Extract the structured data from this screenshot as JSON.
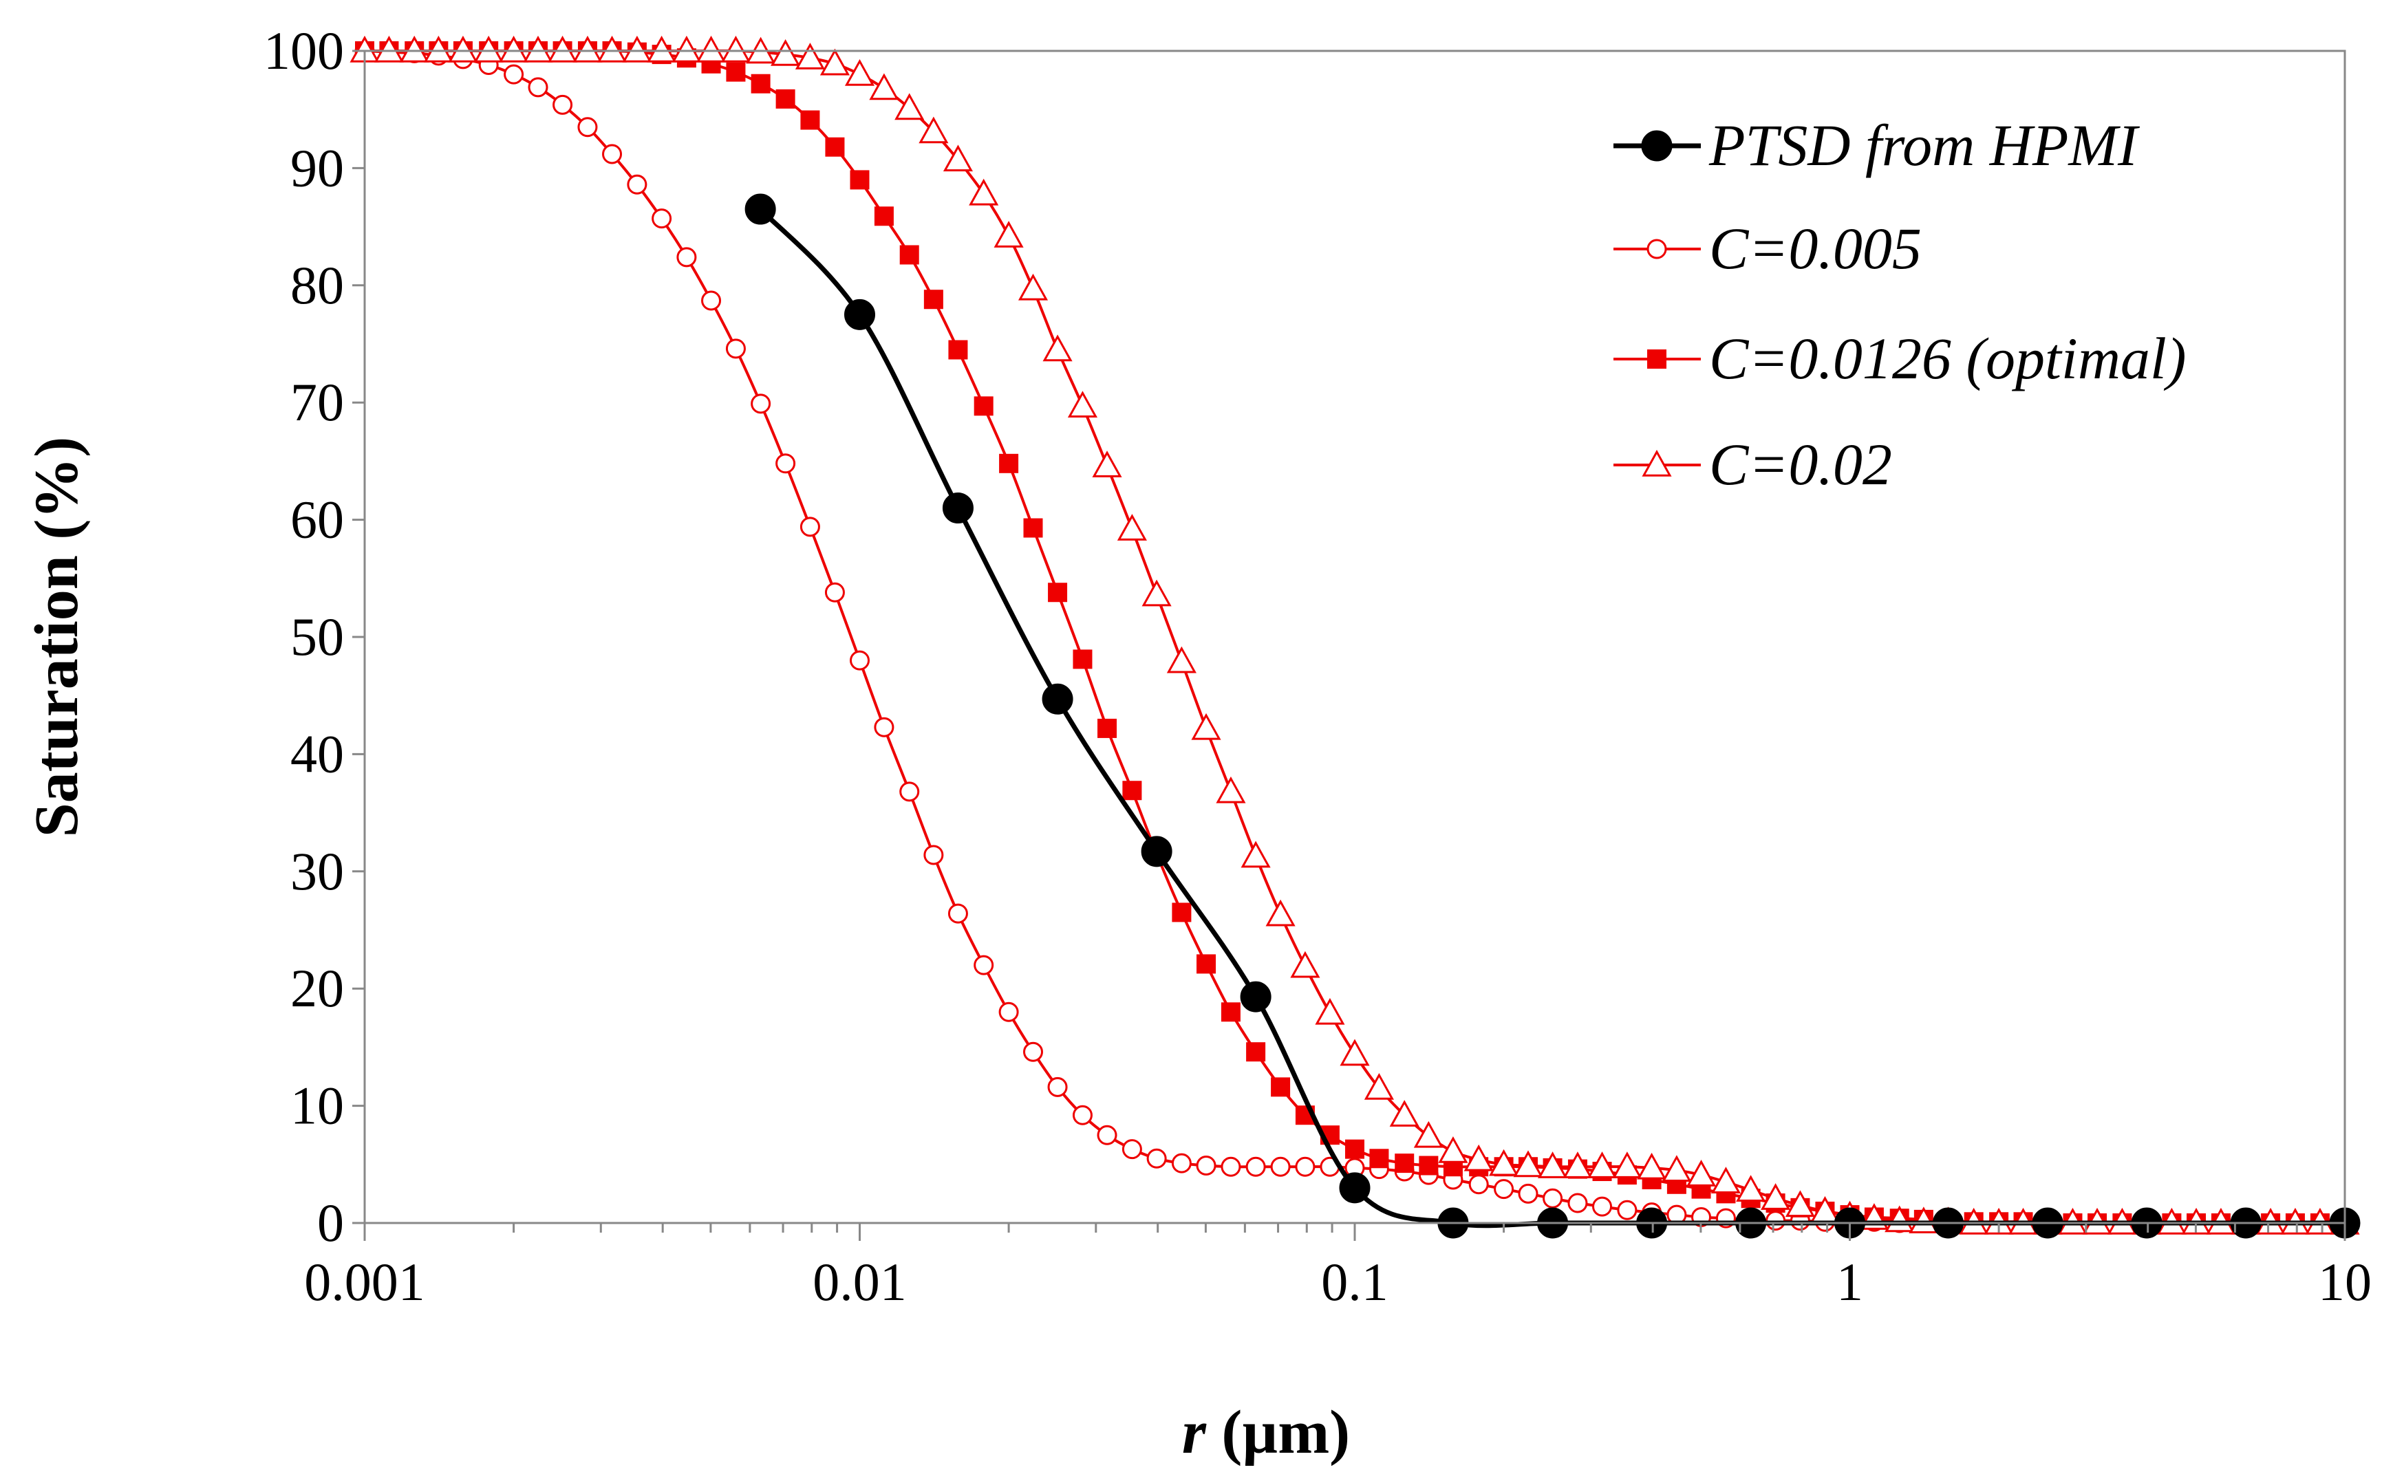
{
  "chart_data": {
    "type": "line",
    "title": "",
    "xlabel_italic": "r",
    "xlabel_rest": " (µm)",
    "ylabel": "Saturation (%)",
    "xscale": "log",
    "xlim": [
      0.001,
      10
    ],
    "ylim": [
      0,
      100
    ],
    "x_ticks": [
      {
        "value": 0.001,
        "label": "0.001"
      },
      {
        "value": 0.01,
        "label": "0.01"
      },
      {
        "value": 0.1,
        "label": "0.1"
      },
      {
        "value": 1,
        "label": "1"
      },
      {
        "value": 10,
        "label": "10"
      }
    ],
    "y_ticks": [
      {
        "value": 0,
        "label": "0"
      },
      {
        "value": 10,
        "label": "10"
      },
      {
        "value": 20,
        "label": "20"
      },
      {
        "value": 30,
        "label": "30"
      },
      {
        "value": 40,
        "label": "40"
      },
      {
        "value": 50,
        "label": "50"
      },
      {
        "value": 60,
        "label": "60"
      },
      {
        "value": 70,
        "label": "70"
      },
      {
        "value": 80,
        "label": "80"
      },
      {
        "value": 90,
        "label": "90"
      },
      {
        "value": 100,
        "label": "100"
      }
    ],
    "grid": false,
    "legend_position": "top-right",
    "series": [
      {
        "name": "PTSD from HPMI",
        "color": "#000000",
        "marker": "circle-filled",
        "x": [
          0.0063,
          0.01,
          0.0158,
          0.0251,
          0.0398,
          0.0631,
          0.1,
          0.158,
          0.251,
          0.398,
          0.631,
          1,
          1.58,
          2.51,
          3.98,
          6.31,
          10
        ],
        "y": [
          86.5,
          77.5,
          61,
          44.7,
          31.7,
          19.3,
          3,
          0,
          0,
          0,
          0,
          0,
          0,
          0,
          0,
          0,
          0
        ]
      },
      {
        "name": "C=0.005",
        "color": "#ee0000",
        "marker": "circle-open",
        "x": [
          0.001,
          0.00112,
          0.00126,
          0.00141,
          0.00158,
          0.00178,
          0.002,
          0.00224,
          0.00251,
          0.00282,
          0.00316,
          0.00355,
          0.00398,
          0.00447,
          0.00501,
          0.00562,
          0.00631,
          0.00708,
          0.00794,
          0.00891,
          0.01,
          0.0112,
          0.0126,
          0.0141,
          0.0158,
          0.0178,
          0.02,
          0.0224,
          0.0251,
          0.0282,
          0.0316,
          0.0355,
          0.0398,
          0.0447,
          0.0501,
          0.0562,
          0.0631,
          0.0708,
          0.0794,
          0.0891,
          0.1,
          0.112,
          0.126,
          0.141,
          0.158,
          0.178,
          0.2,
          0.224,
          0.251,
          0.282,
          0.316,
          0.355,
          0.398,
          0.447,
          0.501,
          0.562,
          0.631,
          0.708,
          0.794,
          0.891,
          1,
          1.12,
          1.26,
          1.41,
          1.58,
          1.78,
          2,
          2.24,
          2.51,
          2.82,
          3.16,
          3.55,
          3.98,
          4.47,
          5.01,
          5.62,
          6.31,
          7.08,
          7.94,
          8.91,
          10
        ],
        "y": [
          100,
          99.9,
          99.8,
          99.6,
          99.3,
          98.8,
          98,
          96.9,
          95.4,
          93.5,
          91.2,
          88.6,
          85.7,
          82.4,
          78.7,
          74.6,
          69.9,
          64.8,
          59.4,
          53.8,
          48,
          42.3,
          36.8,
          31.4,
          26.4,
          22,
          18,
          14.6,
          11.6,
          9.2,
          7.5,
          6.3,
          5.5,
          5.1,
          4.9,
          4.8,
          4.8,
          4.8,
          4.8,
          4.8,
          4.7,
          4.6,
          4.4,
          4.1,
          3.7,
          3.3,
          2.9,
          2.5,
          2.1,
          1.7,
          1.4,
          1.1,
          0.9,
          0.7,
          0.5,
          0.4,
          0.3,
          0.2,
          0.2,
          0.1,
          0.1,
          0.1,
          0,
          0,
          0,
          0,
          0,
          0,
          0,
          0,
          0,
          0,
          0,
          0,
          0,
          0,
          0,
          0,
          0,
          0,
          0
        ]
      },
      {
        "name": "C=0.0126 (optimal)",
        "color": "#ee0000",
        "marker": "square-filled",
        "x": [
          0.001,
          0.00112,
          0.00126,
          0.00141,
          0.00158,
          0.00178,
          0.002,
          0.00224,
          0.00251,
          0.00282,
          0.00316,
          0.00355,
          0.00398,
          0.00447,
          0.00501,
          0.00562,
          0.00631,
          0.00708,
          0.00794,
          0.00891,
          0.01,
          0.0112,
          0.0126,
          0.0141,
          0.0158,
          0.0178,
          0.02,
          0.0224,
          0.0251,
          0.0282,
          0.0316,
          0.0355,
          0.0398,
          0.0447,
          0.0501,
          0.0562,
          0.0631,
          0.0708,
          0.0794,
          0.0891,
          0.1,
          0.112,
          0.126,
          0.141,
          0.158,
          0.178,
          0.2,
          0.224,
          0.251,
          0.282,
          0.316,
          0.355,
          0.398,
          0.447,
          0.501,
          0.562,
          0.631,
          0.708,
          0.794,
          0.891,
          1,
          1.12,
          1.26,
          1.41,
          1.58,
          1.78,
          2,
          2.24,
          2.51,
          2.82,
          3.16,
          3.55,
          3.98,
          4.47,
          5.01,
          5.62,
          6.31,
          7.08,
          7.94,
          8.91,
          10
        ],
        "y": [
          100,
          100,
          100,
          100,
          100,
          100,
          100,
          100,
          100,
          100,
          100,
          99.9,
          99.7,
          99.4,
          98.9,
          98.2,
          97.2,
          95.9,
          94.1,
          91.8,
          89,
          85.9,
          82.6,
          78.8,
          74.5,
          69.7,
          64.8,
          59.3,
          53.8,
          48.1,
          42.2,
          36.9,
          31.5,
          26.5,
          22.1,
          18,
          14.6,
          11.6,
          9.2,
          7.5,
          6.3,
          5.5,
          5.1,
          4.9,
          4.8,
          4.8,
          4.8,
          4.8,
          4.7,
          4.6,
          4.4,
          4.1,
          3.7,
          3.3,
          2.9,
          2.5,
          2.1,
          1.7,
          1.3,
          1,
          0.7,
          0.5,
          0.4,
          0.3,
          0.2,
          0.1,
          0.1,
          0.1,
          0,
          0,
          0,
          0,
          0,
          0,
          0,
          0,
          0,
          0,
          0,
          0,
          0
        ]
      },
      {
        "name": "C=0.02",
        "color": "#ee0000",
        "marker": "triangle-open",
        "x": [
          0.001,
          0.00112,
          0.00126,
          0.00141,
          0.00158,
          0.00178,
          0.002,
          0.00224,
          0.00251,
          0.00282,
          0.00316,
          0.00355,
          0.00398,
          0.00447,
          0.00501,
          0.00562,
          0.00631,
          0.00708,
          0.00794,
          0.00891,
          0.01,
          0.0112,
          0.0126,
          0.0141,
          0.0158,
          0.0178,
          0.02,
          0.0224,
          0.0251,
          0.0282,
          0.0316,
          0.0355,
          0.0398,
          0.0447,
          0.0501,
          0.0562,
          0.0631,
          0.0708,
          0.0794,
          0.0891,
          0.1,
          0.112,
          0.126,
          0.141,
          0.158,
          0.178,
          0.2,
          0.224,
          0.251,
          0.282,
          0.316,
          0.355,
          0.398,
          0.447,
          0.501,
          0.562,
          0.631,
          0.708,
          0.794,
          0.891,
          1,
          1.12,
          1.26,
          1.41,
          1.58,
          1.78,
          2,
          2.24,
          2.51,
          2.82,
          3.16,
          3.55,
          3.98,
          4.47,
          5.01,
          5.62,
          6.31,
          7.08,
          7.94,
          8.91,
          10
        ],
        "y": [
          100,
          100,
          100,
          100,
          100,
          100,
          100,
          100,
          100,
          100,
          100,
          100,
          100,
          100,
          100,
          100,
          99.9,
          99.7,
          99.4,
          98.9,
          98,
          96.8,
          95.1,
          93.1,
          90.7,
          87.8,
          84.2,
          79.7,
          74.5,
          69.7,
          64.6,
          59.2,
          53.6,
          47.9,
          42.2,
          36.8,
          31.3,
          26.3,
          21.9,
          17.9,
          14.4,
          11.5,
          9.2,
          7.4,
          6.1,
          5.4,
          5,
          4.9,
          4.8,
          4.8,
          4.8,
          4.8,
          4.7,
          4.5,
          4.1,
          3.5,
          2.8,
          2.1,
          1.5,
          1,
          0.6,
          0.4,
          0.2,
          0.1,
          0.1,
          0,
          0,
          0,
          0,
          0,
          0,
          0,
          0,
          0,
          0,
          0,
          0,
          0,
          0,
          0,
          0
        ]
      }
    ]
  }
}
